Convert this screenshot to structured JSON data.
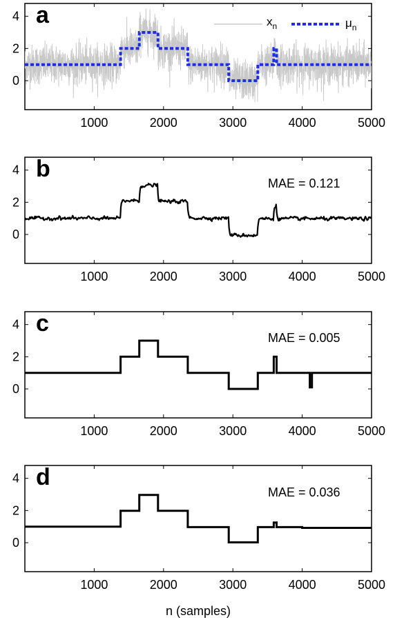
{
  "chart_data": [
    {
      "type": "line",
      "panel_label": "a",
      "xlim": [
        0,
        5000
      ],
      "ylim": [
        -1.8,
        4.8
      ],
      "xticks": [
        "1000",
        "2000",
        "3000",
        "4000",
        "5000"
      ],
      "yticks": [
        "0",
        "2",
        "4"
      ],
      "legend_position": "top-right",
      "series": [
        {
          "name": "x",
          "name_sub": "n",
          "color": "#c8c8c8",
          "style": "noisy signal",
          "noise_sd": 0.6,
          "base_steps": {
            "x": [
              0,
              1380,
              1650,
              1920,
              2350,
              2940,
              3360,
              3590,
              3630,
              5000
            ],
            "y": [
              1,
              2,
              3,
              2,
              1,
              0,
              1,
              2,
              1,
              1
            ]
          }
        },
        {
          "name": "μ",
          "name_sub": "n",
          "color": "#1f2fe0",
          "style": "dashed",
          "x": [
            0,
            1380,
            1650,
            1920,
            2350,
            2940,
            3360,
            3590,
            3630,
            5000
          ],
          "y": [
            1,
            2,
            3,
            2,
            1,
            0,
            1,
            2,
            1,
            1
          ]
        }
      ]
    },
    {
      "type": "line",
      "panel_label": "b",
      "annotation": "MAE = 0.121",
      "xlim": [
        0,
        5000
      ],
      "ylim": [
        -1.8,
        4.8
      ],
      "xticks": [
        "1000",
        "2000",
        "3000",
        "4000",
        "5000"
      ],
      "yticks": [
        "0",
        "2",
        "4"
      ],
      "series": [
        {
          "color": "#000000",
          "noise_sd": 0.09,
          "x": [
            0,
            1380,
            1650,
            1920,
            2350,
            2940,
            3360,
            3590,
            3630,
            5000
          ],
          "y": [
            1,
            2.1,
            3.05,
            2.05,
            1.02,
            -0.05,
            0.98,
            1.8,
            0.98,
            1.0
          ]
        }
      ]
    },
    {
      "type": "line",
      "panel_label": "c",
      "annotation": "MAE = 0.005",
      "xlim": [
        0,
        5000
      ],
      "ylim": [
        -1.8,
        4.8
      ],
      "xticks": [
        "1000",
        "2000",
        "3000",
        "4000",
        "5000"
      ],
      "yticks": [
        "0",
        "2",
        "4"
      ],
      "series": [
        {
          "color": "#000000",
          "x": [
            0,
            1380,
            1650,
            1920,
            2350,
            2940,
            3360,
            3590,
            3630,
            4110,
            4140,
            5000
          ],
          "y": [
            1,
            2,
            3,
            2,
            1,
            0,
            1,
            2,
            1,
            0.1,
            1,
            1
          ]
        }
      ]
    },
    {
      "type": "line",
      "panel_label": "d",
      "annotation": "MAE = 0.036",
      "xlabel": "n (samples)",
      "xlim": [
        0,
        5000
      ],
      "ylim": [
        -1.8,
        4.8
      ],
      "xticks": [
        "1000",
        "2000",
        "3000",
        "4000",
        "5000"
      ],
      "yticks": [
        "0",
        "2",
        "4"
      ],
      "series": [
        {
          "color": "#000000",
          "x": [
            0,
            1000,
            1380,
            1650,
            1920,
            2350,
            2940,
            3360,
            3590,
            3630,
            4000,
            5000
          ],
          "y": [
            1.0,
            1.0,
            1.98,
            2.97,
            1.98,
            0.97,
            0.02,
            0.97,
            1.25,
            0.97,
            0.92,
            1.05
          ]
        }
      ]
    }
  ]
}
